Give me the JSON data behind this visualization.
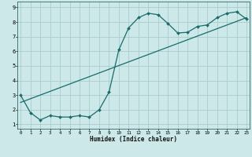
{
  "title": "",
  "xlabel": "Humidex (Indice chaleur)",
  "ylabel": "",
  "bg_color": "#cce8e8",
  "grid_color": "#aacccc",
  "line_color": "#1a6b6b",
  "x_ticks": [
    0,
    1,
    2,
    3,
    4,
    5,
    6,
    7,
    8,
    9,
    10,
    11,
    12,
    13,
    14,
    15,
    16,
    17,
    18,
    19,
    20,
    21,
    22,
    23
  ],
  "y_ticks": [
    1,
    2,
    3,
    4,
    5,
    6,
    7,
    8,
    9
  ],
  "xlim": [
    -0.3,
    23.3
  ],
  "ylim": [
    0.7,
    9.4
  ],
  "curve1_x": [
    0,
    1,
    2,
    3,
    4,
    5,
    6,
    7,
    8,
    9,
    10,
    11,
    12,
    13,
    14,
    15,
    16,
    17,
    18,
    19,
    20,
    21,
    22,
    23
  ],
  "curve1_y": [
    3.0,
    1.8,
    1.3,
    1.6,
    1.5,
    1.5,
    1.6,
    1.5,
    2.0,
    3.2,
    6.1,
    7.6,
    8.3,
    8.6,
    8.5,
    7.9,
    7.25,
    7.3,
    7.7,
    7.8,
    8.3,
    8.6,
    8.7,
    8.2
  ],
  "curve2_x": [
    0,
    23
  ],
  "curve2_y": [
    2.5,
    8.3
  ],
  "marker": "D",
  "marker_size": 2.0,
  "line_width": 0.9
}
